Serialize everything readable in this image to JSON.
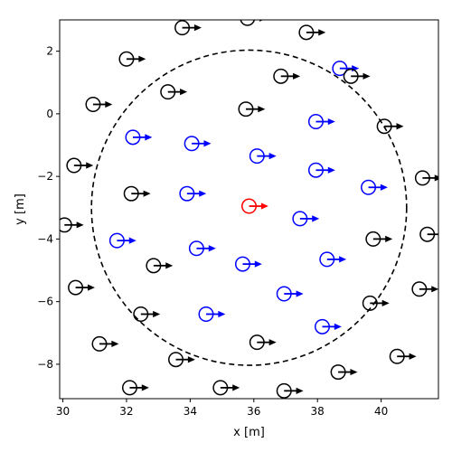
{
  "chart_data": {
    "type": "scatter",
    "title": "",
    "xlabel": "x [m]",
    "ylabel": "y [m]",
    "xlim": [
      29.9,
      41.8
    ],
    "ylim": [
      -9.1,
      3.0
    ],
    "xticks": [
      30,
      32,
      34,
      36,
      38,
      40
    ],
    "yticks": [
      2,
      0,
      -2,
      -4,
      -6,
      -8
    ],
    "xtick_labels": [
      "30",
      "32",
      "34",
      "36",
      "38",
      "40"
    ],
    "ytick_labels": [
      "2",
      "0",
      "−2",
      "−4",
      "−6",
      "−8"
    ],
    "grid": false,
    "legend": false,
    "marker": "open circle with heading arrow",
    "circle_radius": 0.22,
    "arrow_length": 0.55,
    "boundary": {
      "center": [
        35.85,
        -3.0
      ],
      "radius": 4.95,
      "style": "dashed",
      "color": "#000000"
    },
    "colors": {
      "ego": "#ff0000",
      "inside": "#0000ff",
      "outside": "#000000"
    },
    "series": [
      {
        "role": "ego",
        "points": [
          [
            35.85,
            -2.95
          ]
        ]
      },
      {
        "role": "inside",
        "points": [
          [
            38.7,
            1.45
          ],
          [
            32.2,
            -0.75
          ],
          [
            34.05,
            -0.95
          ],
          [
            36.1,
            -1.35
          ],
          [
            37.95,
            -0.25
          ],
          [
            37.95,
            -1.8
          ],
          [
            39.6,
            -2.35
          ],
          [
            33.9,
            -2.55
          ],
          [
            37.45,
            -3.35
          ],
          [
            31.7,
            -4.05
          ],
          [
            34.2,
            -4.3
          ],
          [
            35.65,
            -4.8
          ],
          [
            38.3,
            -4.65
          ],
          [
            36.95,
            -5.75
          ],
          [
            34.5,
            -6.4
          ],
          [
            38.15,
            -6.8
          ]
        ]
      },
      {
        "role": "outside",
        "points": [
          [
            33.75,
            2.75
          ],
          [
            35.8,
            3.05
          ],
          [
            37.65,
            2.6
          ],
          [
            32.0,
            1.75
          ],
          [
            33.3,
            0.7
          ],
          [
            36.85,
            1.2
          ],
          [
            39.05,
            1.2
          ],
          [
            30.95,
            0.3
          ],
          [
            35.75,
            0.15
          ],
          [
            40.1,
            -0.4
          ],
          [
            30.35,
            -1.65
          ],
          [
            41.3,
            -2.05
          ],
          [
            32.15,
            -2.55
          ],
          [
            30.05,
            -3.55
          ],
          [
            39.75,
            -4.0
          ],
          [
            41.45,
            -3.85
          ],
          [
            32.85,
            -4.85
          ],
          [
            30.4,
            -5.55
          ],
          [
            41.2,
            -5.6
          ],
          [
            39.65,
            -6.05
          ],
          [
            32.45,
            -6.4
          ],
          [
            31.15,
            -7.35
          ],
          [
            36.1,
            -7.3
          ],
          [
            33.55,
            -7.85
          ],
          [
            40.5,
            -7.75
          ],
          [
            38.65,
            -8.25
          ],
          [
            32.1,
            -8.75
          ],
          [
            34.95,
            -8.75
          ],
          [
            36.95,
            -8.85
          ]
        ]
      }
    ]
  }
}
